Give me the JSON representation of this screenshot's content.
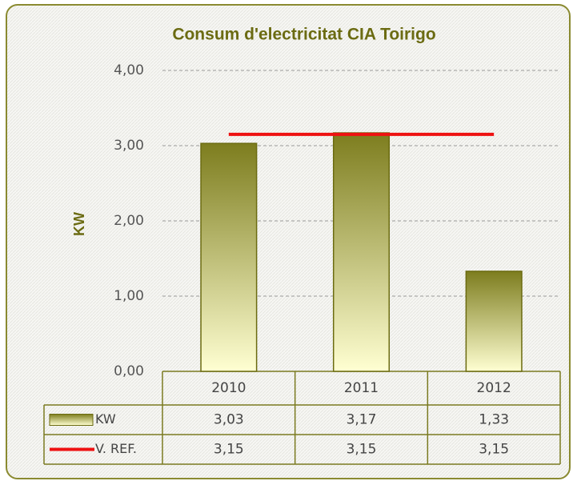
{
  "chart_data": {
    "type": "bar",
    "title": "Consum d'electricitat CIA Toirigo",
    "y_label": "KW",
    "categories": [
      "2010",
      "2011",
      "2012"
    ],
    "series": [
      {
        "name": "KW",
        "type": "bar",
        "color": "#7d7d1e",
        "values": [
          3.03,
          3.17,
          1.33
        ],
        "value_labels": [
          "3,03",
          "3,17",
          "1,33"
        ]
      },
      {
        "name": "V. REF.",
        "type": "line",
        "color": "#ee1111",
        "values": [
          3.15,
          3.15,
          3.15
        ],
        "value_labels": [
          "3,15",
          "3,15",
          "3,15"
        ]
      }
    ],
    "ylim": [
      0,
      4
    ],
    "yticks": [
      {
        "value": 0,
        "label": "0,00"
      },
      {
        "value": 1,
        "label": "1,00"
      },
      {
        "value": 2,
        "label": "2,00"
      },
      {
        "value": 3,
        "label": "3,00"
      },
      {
        "value": 4,
        "label": "4,00"
      }
    ],
    "grid": true
  }
}
